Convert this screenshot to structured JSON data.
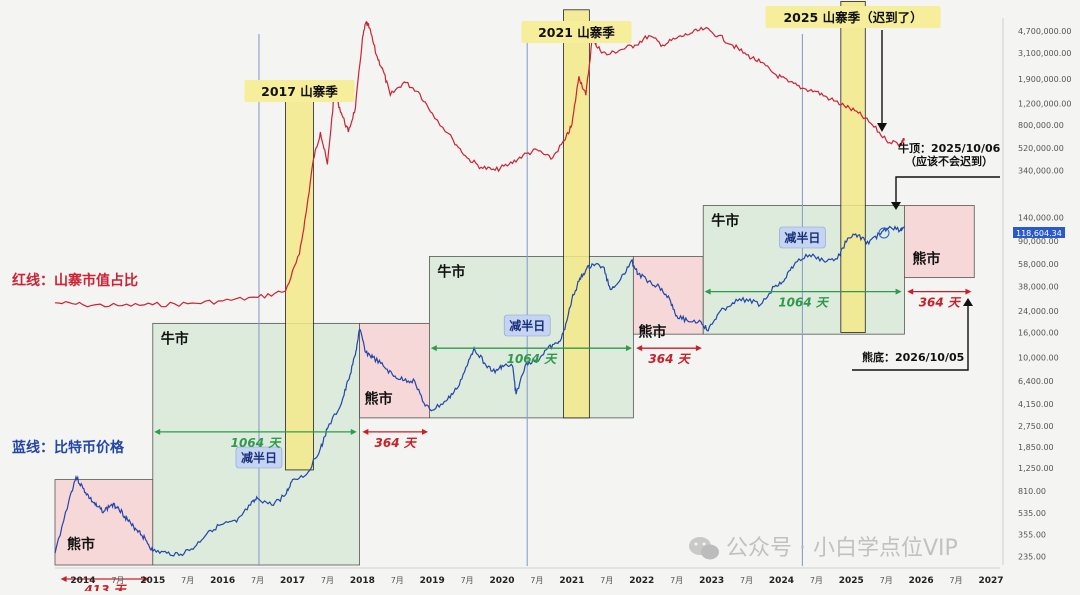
{
  "chart_data": {
    "type": "line",
    "yscale": "log",
    "ylim": [
      200,
      6000000
    ],
    "xlim": [
      2013.6,
      2027.1
    ],
    "grid": false,
    "colors": {
      "btc_line": "#2346a8",
      "alt_line": "#cc2233",
      "bull_fill": "#dcebdc",
      "bear_fill": "#f6d8d8",
      "alt_season_fill": "#f3e98a",
      "halving_line": "#8a9fcc",
      "green_arrow": "#2f9a4c",
      "red_arrow": "#c8202a"
    },
    "y_ticks": [
      {
        "value": 4700000,
        "label": "4,700,000.00"
      },
      {
        "value": 3100000,
        "label": "3,100,000.00"
      },
      {
        "value": 1900000,
        "label": "1,900,000.00"
      },
      {
        "value": 1200000,
        "label": "1,200,000.00"
      },
      {
        "value": 800000,
        "label": "800,000.00"
      },
      {
        "value": 520000,
        "label": "520,000.00"
      },
      {
        "value": 340000,
        "label": "340,000.00"
      },
      {
        "value": 140000,
        "label": "140,000.00"
      },
      {
        "value": 90000,
        "label": "90,000.00"
      },
      {
        "value": 58000,
        "label": "58,000.00"
      },
      {
        "value": 38000,
        "label": "38,000.00"
      },
      {
        "value": 24000,
        "label": "24,000.00"
      },
      {
        "value": 16000,
        "label": "16,000.00"
      },
      {
        "value": 10000,
        "label": "10,000.00"
      },
      {
        "value": 6400,
        "label": "6,400.00"
      },
      {
        "value": 4150,
        "label": "4,150.00"
      },
      {
        "value": 2750,
        "label": "2,750.00"
      },
      {
        "value": 1850,
        "label": "1,850.00"
      },
      {
        "value": 1250,
        "label": "1,250.00"
      },
      {
        "value": 810,
        "label": "810.00"
      },
      {
        "value": 535,
        "label": "535.00"
      },
      {
        "value": 355,
        "label": "355.00"
      },
      {
        "value": 235,
        "label": "235.00"
      }
    ],
    "x_ticks": [
      {
        "t": 2014.0,
        "label": "2014"
      },
      {
        "t": 2014.5,
        "label": "7月"
      },
      {
        "t": 2015.0,
        "label": "2015"
      },
      {
        "t": 2015.5,
        "label": "7月"
      },
      {
        "t": 2016.0,
        "label": "2016"
      },
      {
        "t": 2016.5,
        "label": "7月"
      },
      {
        "t": 2017.0,
        "label": "2017"
      },
      {
        "t": 2017.5,
        "label": "7月"
      },
      {
        "t": 2018.0,
        "label": "2018"
      },
      {
        "t": 2018.5,
        "label": "7月"
      },
      {
        "t": 2019.0,
        "label": "2019"
      },
      {
        "t": 2019.5,
        "label": "7月"
      },
      {
        "t": 2020.0,
        "label": "2020"
      },
      {
        "t": 2020.5,
        "label": "7月"
      },
      {
        "t": 2021.0,
        "label": "2021"
      },
      {
        "t": 2021.5,
        "label": "7月"
      },
      {
        "t": 2022.0,
        "label": "2022"
      },
      {
        "t": 2022.5,
        "label": "7月"
      },
      {
        "t": 2023.0,
        "label": "2023"
      },
      {
        "t": 2023.5,
        "label": "7月"
      },
      {
        "t": 2024.0,
        "label": "2024"
      },
      {
        "t": 2024.5,
        "label": "7月"
      },
      {
        "t": 2025.0,
        "label": "2025"
      },
      {
        "t": 2025.5,
        "label": "7月"
      },
      {
        "t": 2026.0,
        "label": "2026"
      },
      {
        "t": 2026.5,
        "label": "7月"
      },
      {
        "t": 2027.0,
        "label": "2027"
      }
    ],
    "series": [
      {
        "name": "蓝线：比特币价格",
        "x": [
          2013.6,
          2013.8,
          2013.9,
          2014.0,
          2014.1,
          2014.2,
          2014.3,
          2014.4,
          2014.5,
          2014.6,
          2014.7,
          2014.8,
          2014.9,
          2015.0,
          2015.2,
          2015.4,
          2015.6,
          2015.8,
          2016.0,
          2016.2,
          2016.4,
          2016.5,
          2016.7,
          2016.9,
          2017.0,
          2017.2,
          2017.4,
          2017.5,
          2017.7,
          2017.8,
          2017.9,
          2017.96,
          2018.05,
          2018.15,
          2018.3,
          2018.45,
          2018.6,
          2018.75,
          2018.9,
          2019.0,
          2019.2,
          2019.35,
          2019.5,
          2019.6,
          2019.75,
          2019.9,
          2020.0,
          2020.15,
          2020.2,
          2020.35,
          2020.5,
          2020.65,
          2020.8,
          2020.9,
          2021.0,
          2021.1,
          2021.2,
          2021.3,
          2021.45,
          2021.55,
          2021.7,
          2021.85,
          2021.95,
          2022.1,
          2022.25,
          2022.4,
          2022.5,
          2022.65,
          2022.85,
          2022.95,
          2023.1,
          2023.3,
          2023.5,
          2023.7,
          2023.9,
          2024.05,
          2024.2,
          2024.4,
          2024.6,
          2024.8,
          2024.95,
          2025.1,
          2025.25,
          2025.4,
          2025.55,
          2025.7,
          2025.76
        ],
        "y": [
          250,
          680,
          1050,
          850,
          700,
          600,
          550,
          620,
          600,
          500,
          420,
          380,
          320,
          260,
          250,
          245,
          280,
          380,
          430,
          450,
          620,
          700,
          620,
          750,
          1000,
          1100,
          1800,
          2600,
          4200,
          6500,
          10500,
          17000,
          11000,
          10000,
          8500,
          7000,
          6500,
          6400,
          4000,
          3700,
          4400,
          5500,
          8500,
          12000,
          9000,
          7500,
          8600,
          8500,
          5000,
          9000,
          9500,
          11800,
          13000,
          17000,
          30000,
          42000,
          52000,
          58000,
          55000,
          36000,
          44000,
          62000,
          48000,
          42000,
          38000,
          30000,
          22000,
          20000,
          19500,
          16500,
          23000,
          28000,
          30000,
          27000,
          38000,
          44000,
          60000,
          69000,
          62000,
          64000,
          95000,
          100000,
          85000,
          103000,
          118000,
          110000,
          118600
        ]
      },
      {
        "name": "红线：山寨市值占比",
        "x": [
          2013.6,
          2014.0,
          2014.5,
          2015.0,
          2015.5,
          2016.0,
          2016.5,
          2016.9,
          2017.1,
          2017.2,
          2017.3,
          2017.4,
          2017.5,
          2017.6,
          2017.7,
          2017.8,
          2017.9,
          2018.0,
          2018.05,
          2018.1,
          2018.2,
          2018.3,
          2018.4,
          2018.6,
          2018.8,
          2019.0,
          2019.3,
          2019.5,
          2019.7,
          2019.9,
          2020.1,
          2020.3,
          2020.5,
          2020.7,
          2020.9,
          2021.0,
          2021.1,
          2021.2,
          2021.3,
          2021.35,
          2021.5,
          2021.7,
          2021.9,
          2022.1,
          2022.3,
          2022.5,
          2022.7,
          2022.9,
          2023.1,
          2023.3,
          2023.5,
          2023.7,
          2023.9,
          2024.1,
          2024.3,
          2024.5,
          2024.7,
          2024.9,
          2025.1,
          2025.3,
          2025.5,
          2025.7,
          2025.76
        ],
        "y": [
          28000,
          27000,
          26500,
          27000,
          27500,
          29000,
          31000,
          35000,
          70000,
          160000,
          420000,
          700000,
          380000,
          1500000,
          1000000,
          700000,
          1100000,
          4000000,
          5500000,
          5000000,
          3000000,
          2200000,
          1400000,
          1800000,
          1500000,
          1000000,
          600000,
          430000,
          360000,
          340000,
          380000,
          450000,
          500000,
          420000,
          600000,
          800000,
          2000000,
          1400000,
          4500000,
          3500000,
          3000000,
          3300000,
          3600000,
          4300000,
          3600000,
          4100000,
          4500000,
          4900000,
          4300000,
          3600000,
          3000000,
          2600000,
          2100000,
          1800000,
          1600000,
          1500000,
          1300000,
          1150000,
          1000000,
          800000,
          600000,
          560000,
          620000
        ]
      }
    ],
    "regions": [
      {
        "type": "bear",
        "x": [
          2013.6,
          2015.0
        ],
        "y": [
          200,
          1000
        ],
        "label": "熊市"
      },
      {
        "type": "bull",
        "x": [
          2015.0,
          2017.96
        ],
        "y": [
          200,
          19000
        ],
        "label": "牛市"
      },
      {
        "type": "bear",
        "x": [
          2017.96,
          2018.96
        ],
        "y": [
          3200,
          19000
        ],
        "label": "熊市"
      },
      {
        "type": "bull",
        "x": [
          2018.96,
          2021.88
        ],
        "y": [
          3200,
          67000
        ],
        "label": "牛市"
      },
      {
        "type": "bear",
        "x": [
          2021.88,
          2022.88
        ],
        "y": [
          15500,
          67000
        ],
        "label": "熊市"
      },
      {
        "type": "bull",
        "x": [
          2022.88,
          2025.76
        ],
        "y": [
          15500,
          175000
        ],
        "label": "牛市"
      },
      {
        "type": "bear",
        "x": [
          2025.76,
          2026.76
        ],
        "y": [
          45000,
          175000
        ],
        "label": "熊市"
      }
    ],
    "alt_seasons": [
      {
        "x": [
          2016.9,
          2017.3
        ],
        "y": [
          1200,
          1450000
        ],
        "label": "2017 山寨季"
      },
      {
        "x": [
          2020.88,
          2021.25
        ],
        "y": [
          3200,
          7000000
        ],
        "label": "2021 山寨季"
      },
      {
        "x": [
          2024.85,
          2025.2
        ],
        "y": [
          16000,
          8200000
        ],
        "label": "2025 山寨季（迟到了）"
      }
    ],
    "halvings": [
      {
        "x": 2016.52,
        "label": "减半日"
      },
      {
        "x": 2020.36,
        "label": "减半日"
      },
      {
        "x": 2024.3,
        "label": "减半日"
      }
    ],
    "durations": [
      {
        "x": [
          2013.68,
          2014.95
        ],
        "kind": "bear",
        "label": "413 天"
      },
      {
        "x": [
          2015.02,
          2017.92
        ],
        "kind": "bull",
        "label": "1064 天"
      },
      {
        "x": [
          2018.0,
          2018.94
        ],
        "kind": "bear",
        "label": "364 天"
      },
      {
        "x": [
          2018.98,
          2021.86
        ],
        "kind": "bull",
        "label": "1064 天"
      },
      {
        "x": [
          2021.92,
          2022.86
        ],
        "kind": "bear",
        "label": "364 天"
      },
      {
        "x": [
          2022.9,
          2025.72
        ],
        "kind": "bull",
        "label": "1064 天"
      },
      {
        "x": [
          2025.8,
          2026.72
        ],
        "kind": "bear",
        "label": "364 天"
      }
    ],
    "series_labels": {
      "alt": "红线：山寨市值占比",
      "btc": "蓝线：比特币价格"
    },
    "annotations": {
      "bull_top": {
        "line1": "牛顶：2025/10/06",
        "line2": "（应该不会迟到）"
      },
      "bear_bottom": "熊底：2026/10/05",
      "price_tag": "118,604.34"
    },
    "watermark": "公众号 · 小白学点位VIP"
  }
}
